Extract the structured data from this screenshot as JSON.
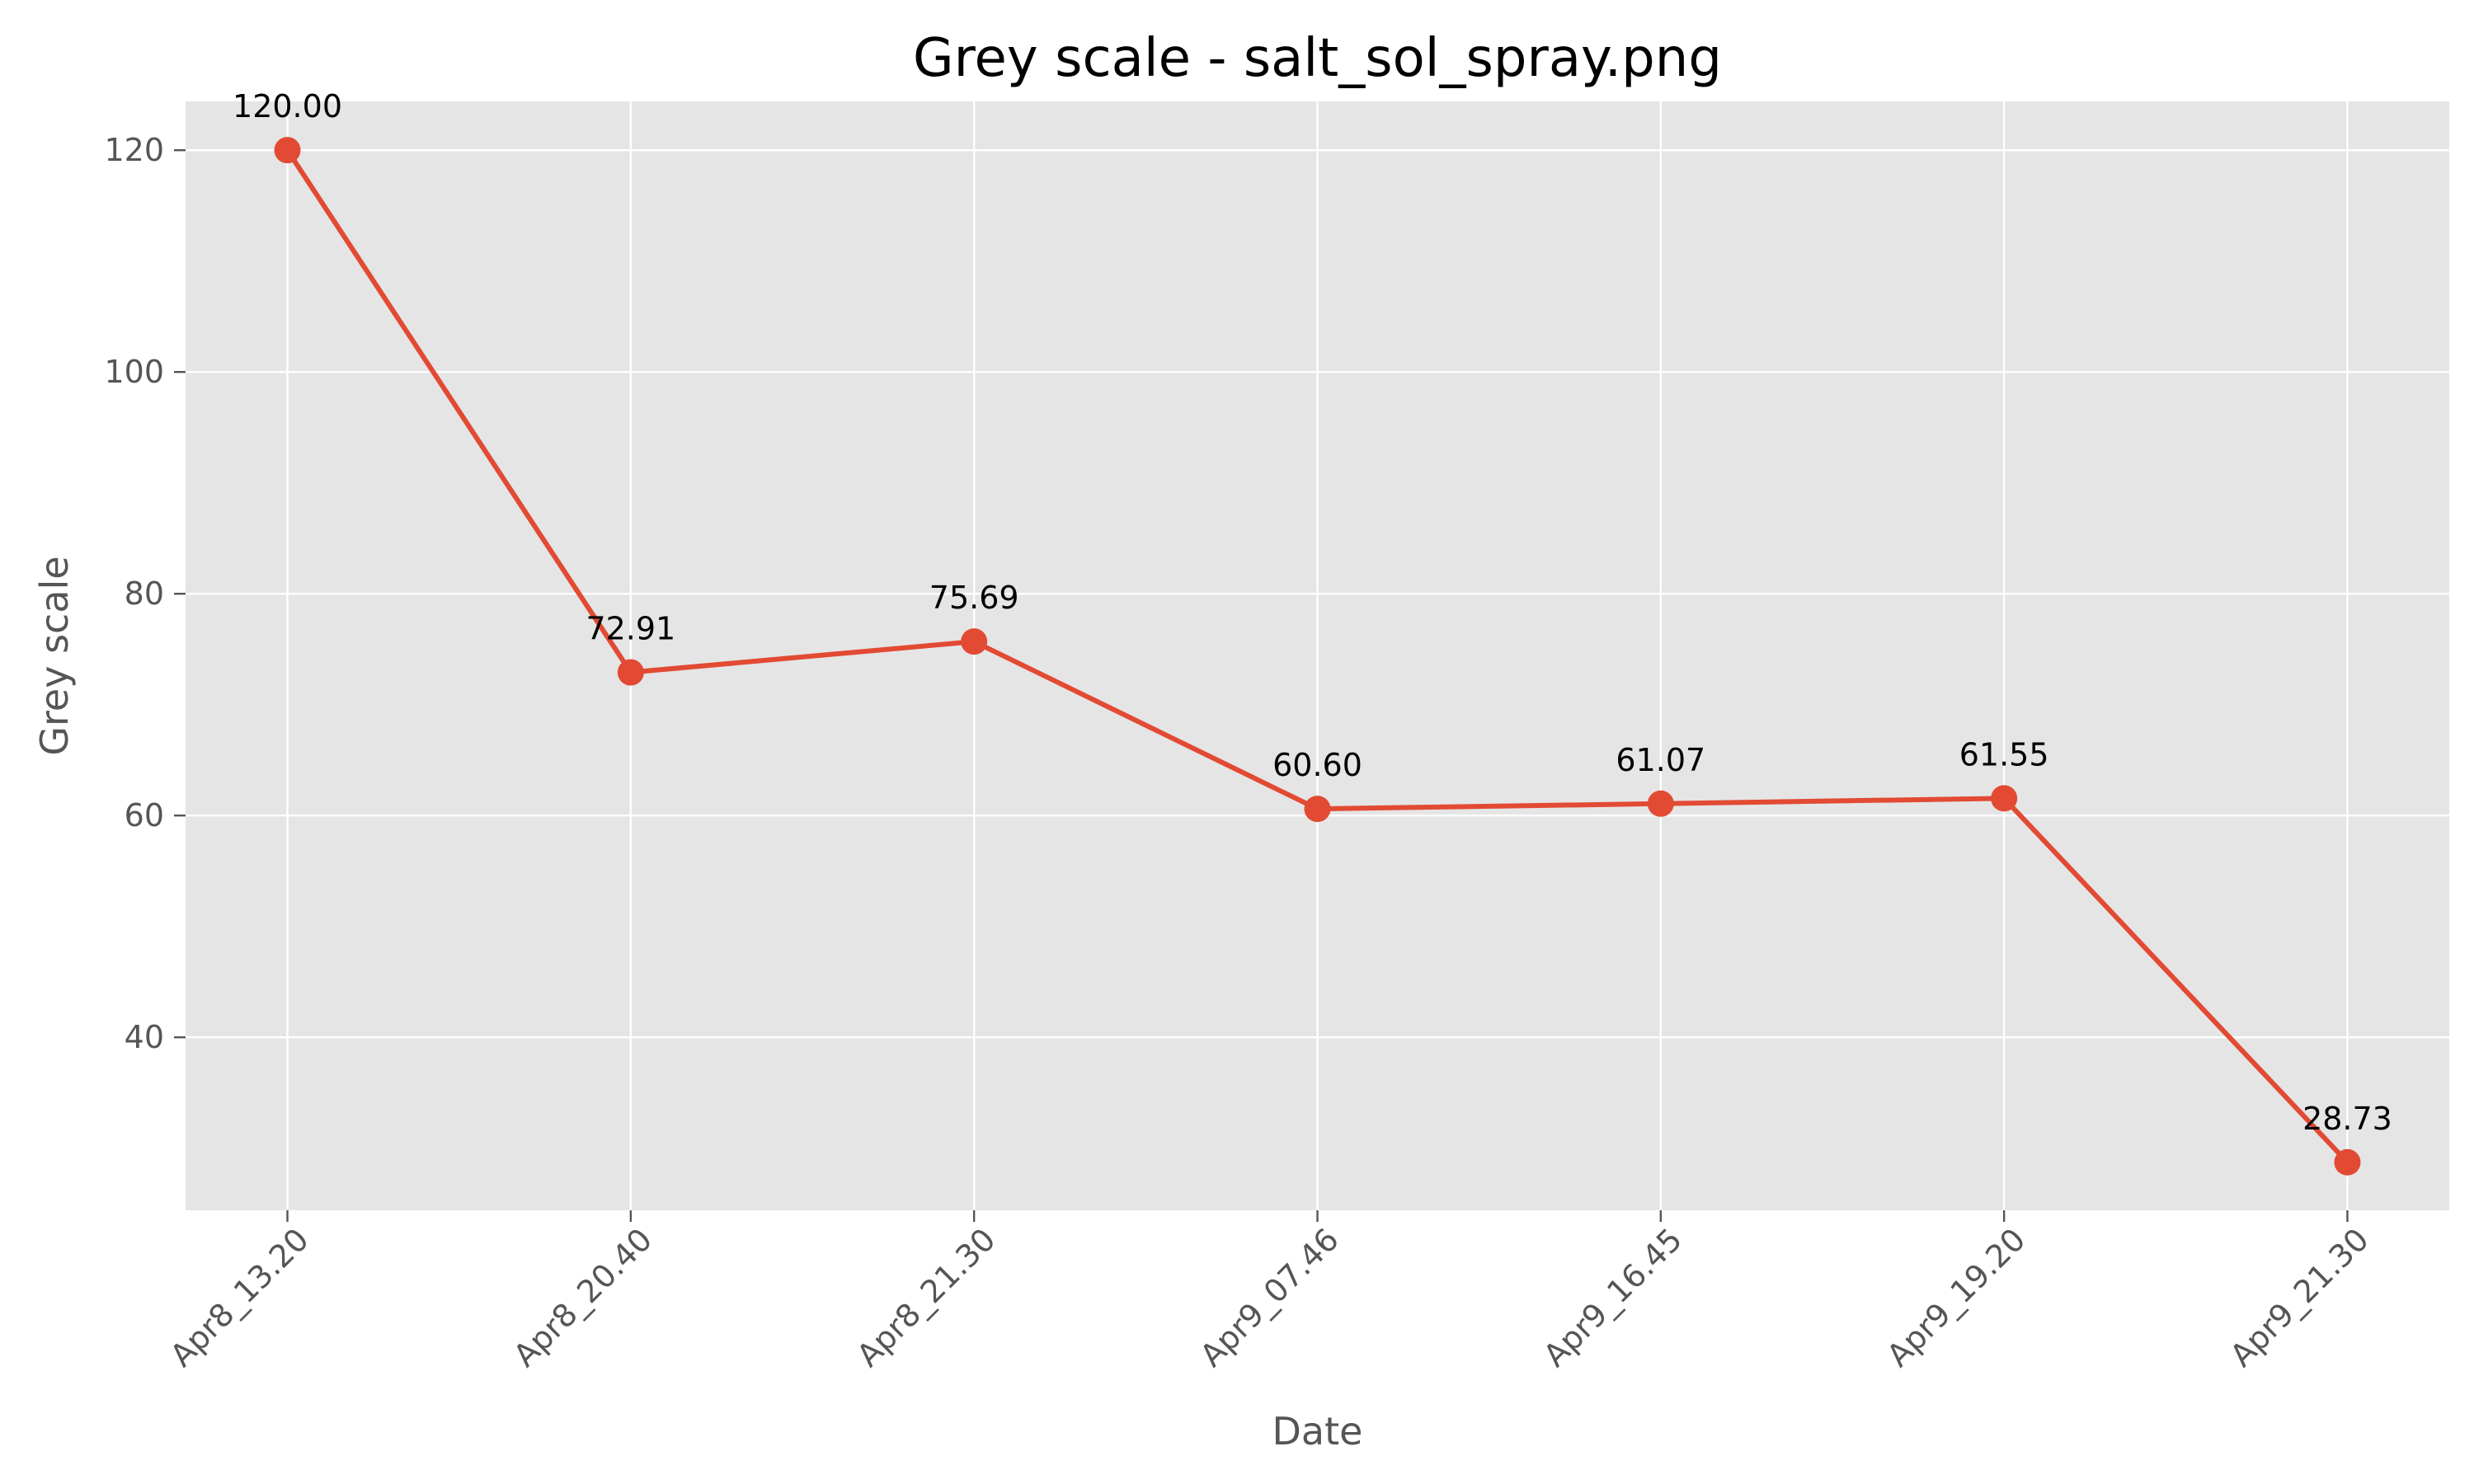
{
  "chart_data": {
    "type": "line",
    "title": "Grey scale - salt_sol_spray.png",
    "xlabel": "Date",
    "ylabel": "Grey scale",
    "categories": [
      "Apr8_13.20",
      "Apr8_20.40",
      "Apr8_21.30",
      "Apr9_07.46",
      "Apr9_16.45",
      "Apr9_19.20",
      "Apr9_21.30"
    ],
    "series": [
      {
        "name": "Grey scale",
        "values": [
          120.0,
          72.91,
          75.69,
          60.6,
          61.07,
          61.55,
          28.73
        ],
        "labels": [
          "120.00",
          "72.91",
          "75.69",
          "60.60",
          "61.07",
          "61.55",
          "28.73"
        ]
      }
    ],
    "ylim": [
      24.4,
      124.4
    ],
    "yticks": [
      40,
      60,
      80,
      100,
      120
    ],
    "grid": true,
    "colors": {
      "line": "#E24A33",
      "plot_background": "#E5E5E5",
      "grid": "#FFFFFF"
    }
  }
}
